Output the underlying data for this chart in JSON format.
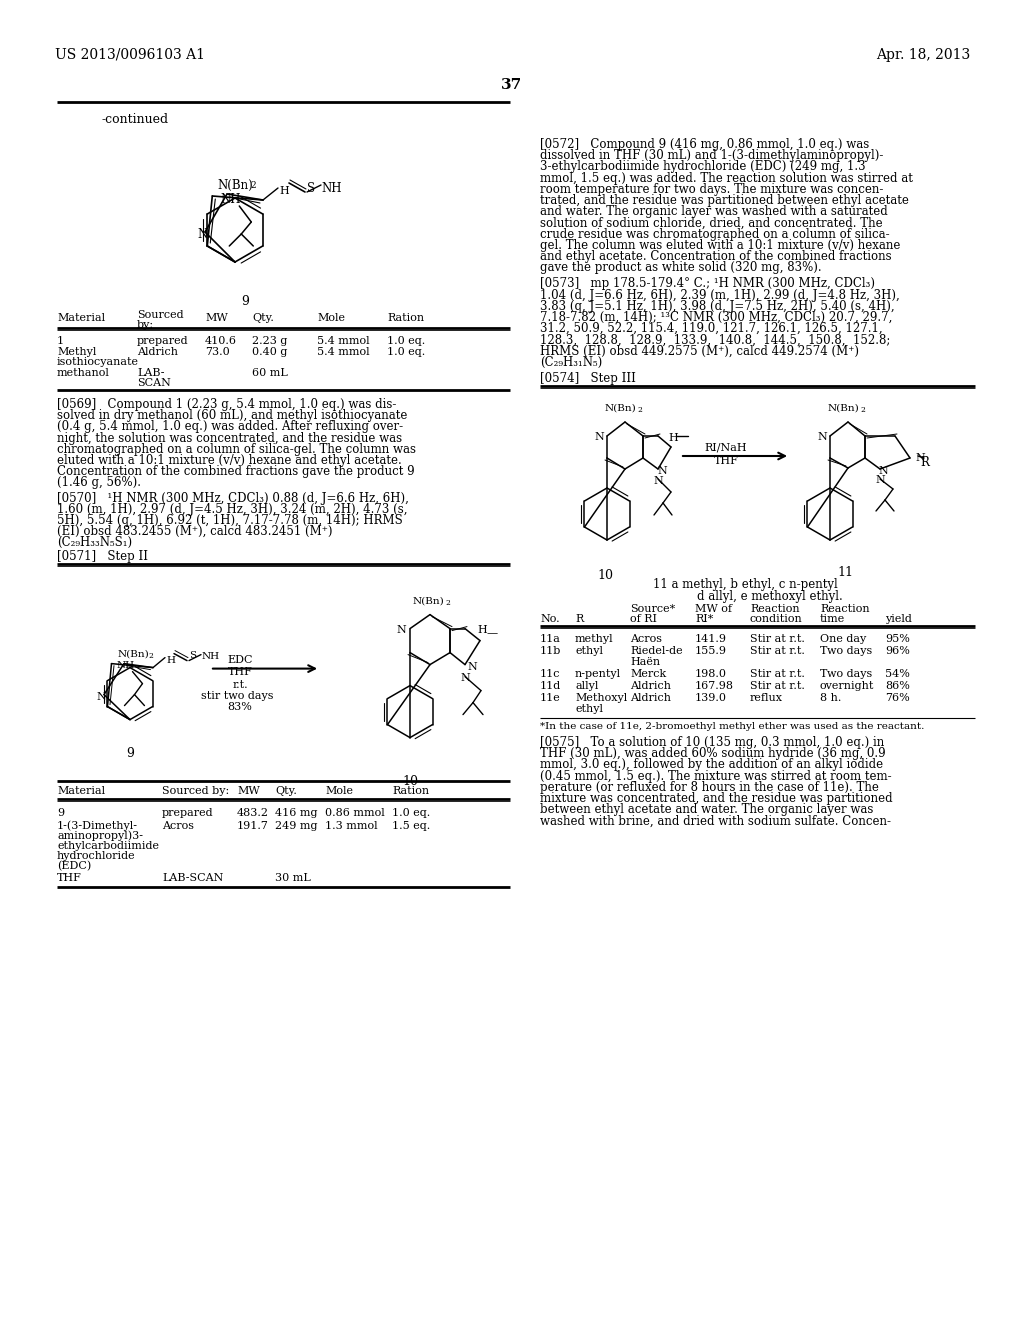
{
  "page_number": "37",
  "patent_number": "US 2013/0096103 A1",
  "patent_date": "Apr. 18, 2013",
  "bg": "#ffffff",
  "continued_label": "-continued",
  "table1_col_headers": [
    "Material",
    "Sourced\nby:",
    "MW",
    "Qty.",
    "Mole",
    "Ration"
  ],
  "table1_rows": [
    [
      "1",
      "prepared",
      "410.6",
      "2.23 g",
      "5.4 mmol",
      "1.0 eq."
    ],
    [
      "Methyl\nisothiocyanate",
      "Aldrich",
      "73.0",
      "0.40 g",
      "5.4 mmol",
      "1.0 eq."
    ],
    [
      "methanol",
      "LAB-\nSCAN",
      "",
      "60 mL",
      "",
      ""
    ]
  ],
  "p569_lines": [
    "[0569]   Compound 1 (2.23 g, 5.4 mmol, 1.0 eq.) was dis-",
    "solved in dry methanol (60 mL), and methyl isothiocyanate",
    "(0.4 g, 5.4 mmol, 1.0 eq.) was added. After refluxing over-",
    "night, the solution was concentrated, and the residue was",
    "chromatographed on a column of silica-gel. The column was",
    "eluted with a 10:1 mixture (v/v) hexane and ethyl acetate.",
    "Concentration of the combined fractions gave the product 9",
    "(1.46 g, 56%)."
  ],
  "p570_lines": [
    "[0570]   ¹H NMR (300 MHz, CDCl₃) 0.88 (d, J=6.6 Hz, 6H),",
    "1.60 (m, 1H), 2.97 (d, J=4.5 Hz, 3H), 3.24 (m, 2H), 4.73 (s,",
    "5H), 5.54 (q, 1H), 6.92 (t, 1H), 7.17-7.78 (m, 14H); HRMS",
    "(EI) obsd 483.2455 (M⁺), calcd 483.2451 (M⁺)",
    "(C₂₉H₃₃N₅S₁)"
  ],
  "p571": "[0571]   Step II",
  "p572_lines": [
    "[0572]   Compound 9 (416 mg, 0.86 mmol, 1.0 eq.) was",
    "dissolved in THF (30 mL) and 1-(3-dimethylaminopropyl)-",
    "3-ethylcarbodiimide hydrochloride (EDC) (249 mg, 1.3",
    "mmol, 1.5 eq.) was added. The reaction solution was stirred at",
    "room temperature for two days. The mixture was concen-",
    "trated, and the residue was partitioned between ethyl acetate",
    "and water. The organic layer was washed with a saturated",
    "solution of sodium chloride, dried, and concentrated. The",
    "crude residue was chromatographed on a column of silica-",
    "gel. The column was eluted with a 10:1 mixture (v/v) hexane",
    "and ethyl acetate. Concentration of the combined fractions",
    "gave the product as white solid (320 mg, 83%)."
  ],
  "p573_lines": [
    "[0573]   mp 178.5-179.4° C.; ¹H NMR (300 MHz, CDCl₃)",
    "1.04 (d, J=6.6 Hz, 6H), 2.39 (m, 1H), 2.99 (d, J=4.8 Hz, 3H),",
    "3.83 (q, J=5.1 Hz, 1H), 3.98 (d, J=7.5 Hz, 2H), 5.40 (s, 4H),",
    "7.18-7.82 (m, 14H); ¹³C NMR (300 MHz, CDCl₃) 20.7, 29.7,",
    "31.2, 50.9, 52.2, 115.4, 119.0, 121.7, 126.1, 126.5, 127.1,",
    "128.3,  128.8,  128.9,  133.9,  140.8,  144.5,  150.8,  152.8;",
    "HRMS (EI) obsd 449.2575 (M⁺), calcd 449.2574 (M⁺)",
    "(C₂₉H₃₁N₅)"
  ],
  "p574": "[0574]   Step III",
  "table3_col_headers_row1": [
    "",
    "",
    "Source*",
    "MW of",
    "Reaction",
    "Reaction",
    ""
  ],
  "table3_col_headers_row2": [
    "No.",
    "R",
    "of RI",
    "RI*",
    "condition",
    "time",
    "yield"
  ],
  "table3_rows": [
    [
      "11a",
      "methyl",
      "Acros",
      "141.9",
      "Stir at r.t.",
      "One day",
      "95%"
    ],
    [
      "11b",
      "ethyl",
      "Riedel-de\nHaën",
      "155.9",
      "Stir at r.t.",
      "Two days",
      "96%"
    ],
    [
      "11c",
      "n-pentyl",
      "Merck",
      "198.0",
      "Stir at r.t.",
      "Two days",
      "54%"
    ],
    [
      "11d",
      "allyl",
      "Aldrich",
      "167.98",
      "Stir at r.t.",
      "overnight",
      "86%"
    ],
    [
      "11e",
      "Methoxyl\nethyl",
      "Aldrich",
      "139.0",
      "reflux",
      "8 h.",
      "76%"
    ]
  ],
  "table3_footnote": "*In the case of 11e, 2-bromoethyl methyl ether was used as the reactant.",
  "p575_lines": [
    "[0575]   To a solution of 10 (135 mg, 0.3 mmol, 1.0 eq.) in",
    "THF (30 mL), was added 60% sodium hydride (36 mg, 0.9",
    "mmol, 3.0 eq.), followed by the addition of an alkyl iodide",
    "(0.45 mmol, 1.5 eq.). The mixture was stirred at room tem-",
    "perature (or refluxed for 8 hours in the case of 11e). The",
    "mixture was concentrated, and the residue was partitioned",
    "between ethyl acetate and water. The organic layer was",
    "washed with brine, and dried with sodium sulfate. Concen-"
  ],
  "table2_col_headers": [
    "Material",
    "Sourced by:",
    "MW",
    "Qty.",
    "Mole",
    "Ration"
  ],
  "table2_rows": [
    [
      "9",
      "prepared",
      "483.2",
      "416 mg",
      "0.86 mmol",
      "1.0 eq."
    ],
    [
      "1-(3-Dimethyl-\naminopropyl)3-\nethylcarbodiimide\nhydrochloride\n(EDC)",
      "Acros",
      "191.7",
      "249 mg",
      "1.3 mmol",
      "1.5 eq."
    ],
    [
      "THF",
      "LAB-SCAN",
      "",
      "30 mL",
      "",
      ""
    ]
  ]
}
